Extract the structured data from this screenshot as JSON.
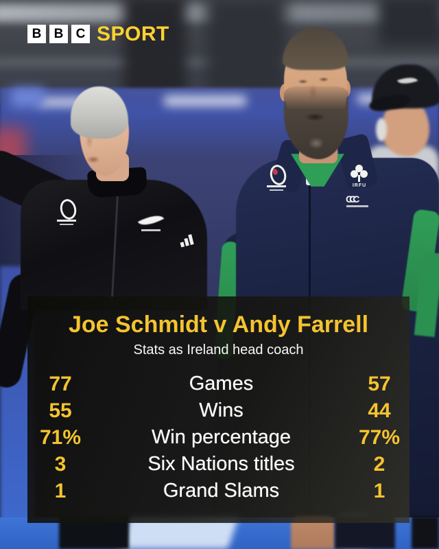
{
  "branding": {
    "bbc_letters": [
      "B",
      "B",
      "C"
    ],
    "wordmark": "SPORT",
    "wordmark_color": "#FFD230"
  },
  "photo": {
    "description": "Joe Schmidt in a black All Blacks jacket and Andy Farrell in a navy IRFU jacket standing pitchside in a blurred stadium",
    "farrell_jersey_text": "IRFU"
  },
  "panel": {
    "title": "Joe Schmidt v Andy Farrell",
    "subtitle": "Stats as Ireland head coach",
    "accent_color": "#F4C330",
    "rows": [
      {
        "left": "77",
        "label": "Games",
        "right": "57"
      },
      {
        "left": "55",
        "label": "Wins",
        "right": "44"
      },
      {
        "left": "71%",
        "label": "Win percentage",
        "right": "77%"
      },
      {
        "left": "3",
        "label": "Six Nations titles",
        "right": "2"
      },
      {
        "left": "1",
        "label": "Grand Slams",
        "right": "1"
      }
    ]
  },
  "chart_data": {
    "type": "table",
    "title": "Joe Schmidt v Andy Farrell",
    "subtitle": "Stats as Ireland head coach",
    "metrics": [
      "Games",
      "Wins",
      "Win percentage",
      "Six Nations titles",
      "Grand Slams"
    ],
    "series": [
      {
        "name": "Joe Schmidt",
        "values": [
          77,
          55,
          "71%",
          3,
          1
        ]
      },
      {
        "name": "Andy Farrell",
        "values": [
          57,
          44,
          "77%",
          2,
          1
        ]
      }
    ],
    "layout": "left column = Joe Schmidt, centre = metric label, right column = Andy Farrell"
  }
}
